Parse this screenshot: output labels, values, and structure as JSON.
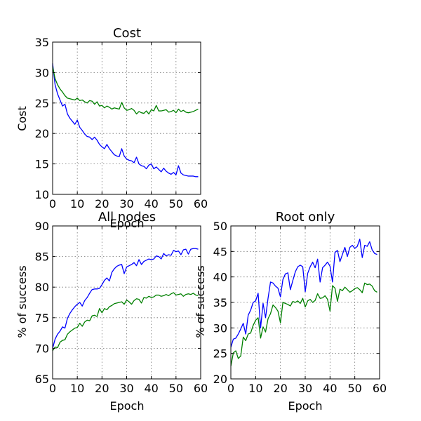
{
  "figure": {
    "background": "#ffffff"
  },
  "chart_data": [
    {
      "id": "cost",
      "type": "line",
      "title": "Cost",
      "xlabel": "Epoch",
      "ylabel": "Cost",
      "xlim": [
        0,
        60
      ],
      "ylim": [
        10,
        35
      ],
      "xticks": [
        0,
        10,
        20,
        30,
        40,
        50,
        60
      ],
      "yticks": [
        10,
        15,
        20,
        25,
        30,
        35
      ],
      "grid": true,
      "series": [
        {
          "color": "#0000ff",
          "x": [
            0,
            1,
            2,
            3,
            4,
            5,
            6,
            7,
            8,
            9,
            10,
            11,
            12,
            13,
            14,
            15,
            16,
            17,
            18,
            19,
            20,
            21,
            22,
            23,
            24,
            25,
            26,
            27,
            28,
            29,
            30,
            31,
            32,
            33,
            34,
            35,
            36,
            37,
            38,
            39,
            40,
            41,
            42,
            43,
            44,
            45,
            46,
            47,
            48,
            49,
            50,
            51,
            52,
            53,
            54,
            55,
            56,
            57,
            58,
            59
          ],
          "y": [
            31.5,
            28.0,
            26.5,
            25.5,
            24.5,
            24.8,
            23.2,
            22.5,
            22.0,
            21.5,
            22.2,
            21.0,
            20.5,
            19.9,
            19.5,
            19.4,
            19.0,
            19.4,
            18.9,
            18.2,
            17.8,
            17.5,
            18.2,
            17.5,
            17.0,
            16.5,
            16.3,
            16.2,
            17.5,
            16.3,
            15.8,
            15.6,
            15.5,
            15.2,
            16.1,
            15.0,
            14.7,
            14.6,
            14.2,
            14.8,
            15.0,
            14.2,
            14.5,
            14.1,
            13.7,
            14.3,
            13.8,
            13.5,
            13.3,
            13.6,
            13.2,
            14.7,
            13.5,
            13.2,
            13.1,
            13.0,
            13.0,
            13.0,
            12.9,
            12.9
          ]
        },
        {
          "color": "#008000",
          "x": [
            0,
            1,
            2,
            3,
            4,
            5,
            6,
            7,
            8,
            9,
            10,
            11,
            12,
            13,
            14,
            15,
            16,
            17,
            18,
            19,
            20,
            21,
            22,
            23,
            24,
            25,
            26,
            27,
            28,
            29,
            30,
            31,
            32,
            33,
            34,
            35,
            36,
            37,
            38,
            39,
            40,
            41,
            42,
            43,
            44,
            45,
            46,
            47,
            48,
            49,
            50,
            51,
            52,
            53,
            54,
            55,
            56,
            57,
            58,
            59
          ],
          "y": [
            31.0,
            29.0,
            28.0,
            27.3,
            26.8,
            26.2,
            25.8,
            25.7,
            25.6,
            25.5,
            25.8,
            25.4,
            25.5,
            25.2,
            25.0,
            25.4,
            25.3,
            24.8,
            25.2,
            24.5,
            24.6,
            24.2,
            24.5,
            24.3,
            24.0,
            24.2,
            24.1,
            24.0,
            25.1,
            24.2,
            23.8,
            23.9,
            24.1,
            23.8,
            23.2,
            23.6,
            23.4,
            23.3,
            23.7,
            23.2,
            23.9,
            23.7,
            24.6,
            23.7,
            23.7,
            23.8,
            23.9,
            23.5,
            23.6,
            23.8,
            23.4,
            24.0,
            23.6,
            23.8,
            23.5,
            23.4,
            23.5,
            23.6,
            23.8,
            24.0
          ]
        }
      ]
    },
    {
      "id": "all-nodes",
      "type": "line",
      "title": "All nodes",
      "xlabel": "Epoch",
      "ylabel": "% of success",
      "xlim": [
        0,
        60
      ],
      "ylim": [
        65,
        90
      ],
      "xticks": [
        0,
        10,
        20,
        30,
        40,
        50,
        60
      ],
      "yticks": [
        65,
        70,
        75,
        80,
        85,
        90
      ],
      "grid": true,
      "series": [
        {
          "color": "#0000ff",
          "x": [
            0,
            1,
            2,
            3,
            4,
            5,
            6,
            7,
            8,
            9,
            10,
            11,
            12,
            13,
            14,
            15,
            16,
            17,
            18,
            19,
            20,
            21,
            22,
            23,
            24,
            25,
            26,
            27,
            28,
            29,
            30,
            31,
            32,
            33,
            34,
            35,
            36,
            37,
            38,
            39,
            40,
            41,
            42,
            43,
            44,
            45,
            46,
            47,
            48,
            49,
            50,
            51,
            52,
            53,
            54,
            55,
            56,
            57,
            58,
            59
          ],
          "y": [
            70.0,
            71.5,
            72.3,
            72.8,
            73.5,
            73.3,
            74.9,
            75.7,
            76.3,
            76.8,
            77.2,
            77.5,
            76.9,
            77.8,
            78.3,
            79.0,
            79.6,
            79.7,
            79.7,
            79.8,
            80.4,
            81.1,
            81.5,
            81.0,
            82.4,
            83.0,
            83.4,
            83.6,
            83.7,
            82.2,
            83.3,
            83.5,
            83.7,
            84.0,
            83.5,
            84.5,
            83.7,
            84.2,
            84.4,
            84.6,
            84.5,
            84.6,
            85.1,
            85.0,
            84.6,
            85.5,
            85.1,
            85.3,
            85.2,
            86.0,
            85.8,
            85.9,
            85.3,
            86.1,
            86.2,
            85.4,
            86.2,
            86.3,
            86.3,
            86.2
          ]
        },
        {
          "color": "#008000",
          "x": [
            0,
            1,
            2,
            3,
            4,
            5,
            6,
            7,
            8,
            9,
            10,
            11,
            12,
            13,
            14,
            15,
            16,
            17,
            18,
            19,
            20,
            21,
            22,
            23,
            24,
            25,
            26,
            27,
            28,
            29,
            30,
            31,
            32,
            33,
            34,
            35,
            36,
            37,
            38,
            39,
            40,
            41,
            42,
            43,
            44,
            45,
            46,
            47,
            48,
            49,
            50,
            51,
            52,
            53,
            54,
            55,
            56,
            57,
            58,
            59
          ],
          "y": [
            69.6,
            70.2,
            70.1,
            71.0,
            71.3,
            71.4,
            72.3,
            72.7,
            73.0,
            73.3,
            73.4,
            74.1,
            73.6,
            74.3,
            74.6,
            74.5,
            75.3,
            75.4,
            75.2,
            76.5,
            75.8,
            76.5,
            76.3,
            76.8,
            77.0,
            77.3,
            77.4,
            77.5,
            77.6,
            77.2,
            77.9,
            77.6,
            77.2,
            77.8,
            78.1,
            78.0,
            77.4,
            78.3,
            78.2,
            78.5,
            78.3,
            78.4,
            78.7,
            78.7,
            78.5,
            78.6,
            78.8,
            78.6,
            78.9,
            79.1,
            78.7,
            78.8,
            78.9,
            78.5,
            78.8,
            78.9,
            78.8,
            79.0,
            78.7,
            78.6
          ]
        }
      ]
    },
    {
      "id": "root-only",
      "type": "line",
      "title": "Root only",
      "xlabel": "Epoch",
      "ylabel": "% of success",
      "xlim": [
        0,
        60
      ],
      "ylim": [
        20,
        50
      ],
      "xticks": [
        0,
        10,
        20,
        30,
        40,
        50,
        60
      ],
      "yticks": [
        20,
        25,
        30,
        35,
        40,
        45,
        50
      ],
      "grid": true,
      "series": [
        {
          "color": "#0000ff",
          "x": [
            0,
            1,
            2,
            3,
            4,
            5,
            6,
            7,
            8,
            9,
            10,
            11,
            12,
            13,
            14,
            15,
            16,
            17,
            18,
            19,
            20,
            21,
            22,
            23,
            24,
            25,
            26,
            27,
            28,
            29,
            30,
            31,
            32,
            33,
            34,
            35,
            36,
            37,
            38,
            39,
            40,
            41,
            42,
            43,
            44,
            45,
            46,
            47,
            48,
            49,
            50,
            51,
            52,
            53,
            54,
            55,
            56,
            57,
            58,
            59
          ],
          "y": [
            26.2,
            27.8,
            28.0,
            28.8,
            29.8,
            30.9,
            28.8,
            32.5,
            33.5,
            35.0,
            35.3,
            36.8,
            30.0,
            34.8,
            32.0,
            35.8,
            39.0,
            38.8,
            38.2,
            37.8,
            36.1,
            39.5,
            40.6,
            40.8,
            37.5,
            39.3,
            41.0,
            42.0,
            42.3,
            42.0,
            37.1,
            40.7,
            42.0,
            42.9,
            41.8,
            43.5,
            39.0,
            41.8,
            42.3,
            42.9,
            42.1,
            39.0,
            44.8,
            45.2,
            43.0,
            44.4,
            45.8,
            44.0,
            45.8,
            46.2,
            45.6,
            46.0,
            47.4,
            43.8,
            46.2,
            46.0,
            46.9,
            45.3,
            44.6,
            44.4
          ]
        },
        {
          "color": "#008000",
          "x": [
            0,
            1,
            2,
            3,
            4,
            5,
            6,
            7,
            8,
            9,
            10,
            11,
            12,
            13,
            14,
            15,
            16,
            17,
            18,
            19,
            20,
            21,
            22,
            23,
            24,
            25,
            26,
            27,
            28,
            29,
            30,
            31,
            32,
            33,
            34,
            35,
            36,
            37,
            38,
            39,
            40,
            41,
            42,
            43,
            44,
            45,
            46,
            47,
            48,
            49,
            50,
            51,
            52,
            53,
            54,
            55,
            56,
            57,
            58,
            59
          ],
          "y": [
            22.5,
            25.1,
            25.5,
            24.0,
            24.5,
            28.2,
            27.5,
            28.8,
            29.0,
            30.5,
            31.5,
            32.0,
            28.0,
            30.2,
            29.2,
            31.8,
            32.8,
            34.5,
            34.0,
            33.3,
            31.0,
            35.0,
            34.8,
            34.6,
            34.3,
            35.2,
            35.0,
            35.3,
            34.8,
            35.8,
            34.1,
            35.3,
            35.6,
            35.0,
            35.4,
            36.7,
            35.8,
            35.9,
            36.3,
            35.6,
            33.3,
            38.3,
            37.8,
            35.2,
            37.6,
            37.3,
            38.0,
            37.5,
            37.0,
            37.3,
            37.7,
            37.9,
            37.5,
            36.9,
            38.8,
            38.5,
            38.6,
            38.2,
            37.3,
            37.0
          ]
        }
      ]
    }
  ]
}
